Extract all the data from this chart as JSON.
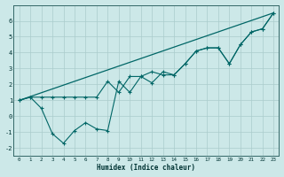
{
  "xlabel": "Humidex (Indice chaleur)",
  "bg_color": "#cce8e8",
  "grid_color": "#aacccc",
  "line_color": "#006666",
  "xlim": [
    -0.5,
    23.5
  ],
  "ylim": [
    -2.5,
    7.0
  ],
  "xticks": [
    0,
    1,
    2,
    3,
    4,
    5,
    6,
    7,
    8,
    9,
    10,
    11,
    12,
    13,
    14,
    15,
    16,
    17,
    18,
    19,
    20,
    21,
    22,
    23
  ],
  "yticks": [
    -2,
    -1,
    0,
    1,
    2,
    3,
    4,
    5,
    6
  ],
  "line_trend_x": [
    0,
    23
  ],
  "line_trend_y": [
    1.0,
    6.5
  ],
  "line_upper_x": [
    0,
    1,
    2,
    3,
    4,
    5,
    6,
    7,
    8,
    9,
    10,
    11,
    12,
    13,
    14,
    15,
    16,
    17,
    18,
    19,
    20,
    21,
    22,
    23
  ],
  "line_upper_y": [
    1.0,
    1.2,
    1.2,
    1.2,
    1.2,
    1.2,
    1.2,
    1.2,
    2.2,
    1.5,
    2.5,
    2.5,
    2.1,
    2.8,
    2.6,
    3.3,
    4.1,
    4.3,
    4.3,
    3.3,
    4.5,
    5.3,
    5.5,
    6.5
  ],
  "line_zigzag_x": [
    0,
    1,
    2,
    3,
    4,
    5,
    6,
    7,
    8,
    9,
    10,
    11,
    12,
    13,
    14,
    15,
    16,
    17,
    18,
    19,
    20,
    21,
    22,
    23
  ],
  "line_zigzag_y": [
    1.0,
    1.2,
    0.5,
    -1.1,
    -1.7,
    -0.9,
    -0.4,
    -0.8,
    -0.9,
    2.2,
    1.5,
    2.5,
    2.8,
    2.6,
    2.6,
    3.3,
    4.1,
    4.3,
    4.3,
    3.3,
    4.5,
    5.3,
    5.5,
    6.5
  ]
}
